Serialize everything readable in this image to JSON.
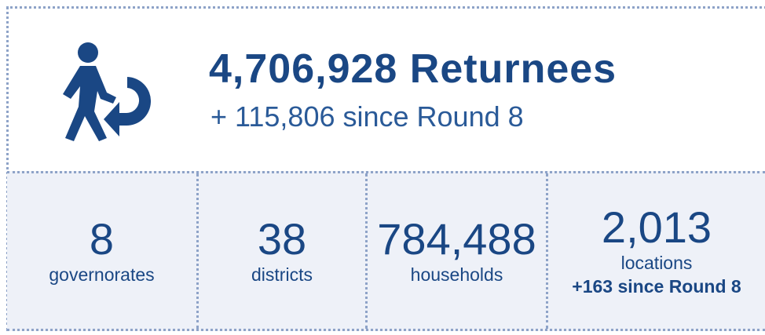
{
  "header": {
    "title": "4,706,928 Returnees",
    "subtitle": "+ 115,806 since Round 8"
  },
  "stats": [
    {
      "value": "8",
      "label": "governorates"
    },
    {
      "value": "38",
      "label": "districts"
    },
    {
      "value": "784,488",
      "label": "households"
    },
    {
      "value": "2,013",
      "label": "locations",
      "note": "+163 since Round 8"
    }
  ]
}
